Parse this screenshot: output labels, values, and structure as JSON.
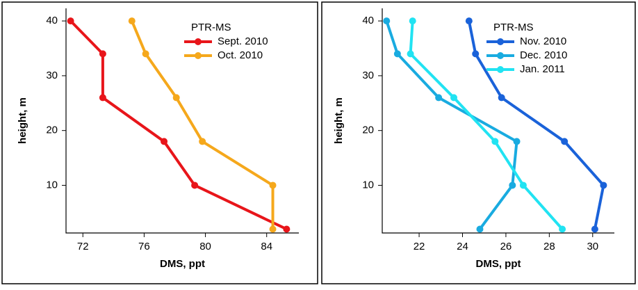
{
  "chart_data": [
    {
      "type": "line",
      "x_label": "DMS, ppt",
      "y_label": "height, m",
      "legend_title": "PTR-MS",
      "xlim": [
        70.9,
        86.1
      ],
      "xticks": [
        72,
        76,
        80,
        84
      ],
      "ylim": [
        1.3,
        42.3
      ],
      "yticks": [
        10,
        20,
        30,
        40
      ],
      "series": [
        {
          "name": "Sept. 2010",
          "color": "#e8151a",
          "x": [
            71.2,
            73.3,
            73.3,
            77.3,
            79.3,
            85.3
          ],
          "y": [
            40,
            34,
            26,
            18,
            10,
            2
          ]
        },
        {
          "name": "Oct. 2010",
          "color": "#f5a81c",
          "x": [
            75.2,
            76.1,
            78.1,
            79.8,
            84.4,
            84.4
          ],
          "y": [
            40,
            34,
            26,
            18,
            10,
            2
          ]
        }
      ]
    },
    {
      "type": "line",
      "x_label": "DMS, ppt",
      "y_label": "height, m",
      "legend_title": "PTR-MS",
      "xlim": [
        20.3,
        31.0
      ],
      "xticks": [
        22,
        24,
        26,
        28,
        30
      ],
      "ylim": [
        1.3,
        42.3
      ],
      "yticks": [
        10,
        20,
        30,
        40
      ],
      "series": [
        {
          "name": "Nov. 2010",
          "color": "#1a62d9",
          "x": [
            24.3,
            24.6,
            25.8,
            28.7,
            30.5,
            30.1
          ],
          "y": [
            40,
            34,
            26,
            18,
            10,
            2
          ]
        },
        {
          "name": "Dec. 2010",
          "color": "#19abe0",
          "x": [
            20.5,
            21.0,
            22.9,
            26.5,
            26.3,
            24.8
          ],
          "y": [
            40,
            34,
            26,
            18,
            10,
            2
          ]
        },
        {
          "name": "Jan. 2011",
          "color": "#21e3f2",
          "x": [
            21.7,
            21.6,
            23.6,
            25.5,
            26.8,
            28.6
          ],
          "y": [
            40,
            34,
            26,
            18,
            10,
            2
          ]
        }
      ]
    }
  ]
}
